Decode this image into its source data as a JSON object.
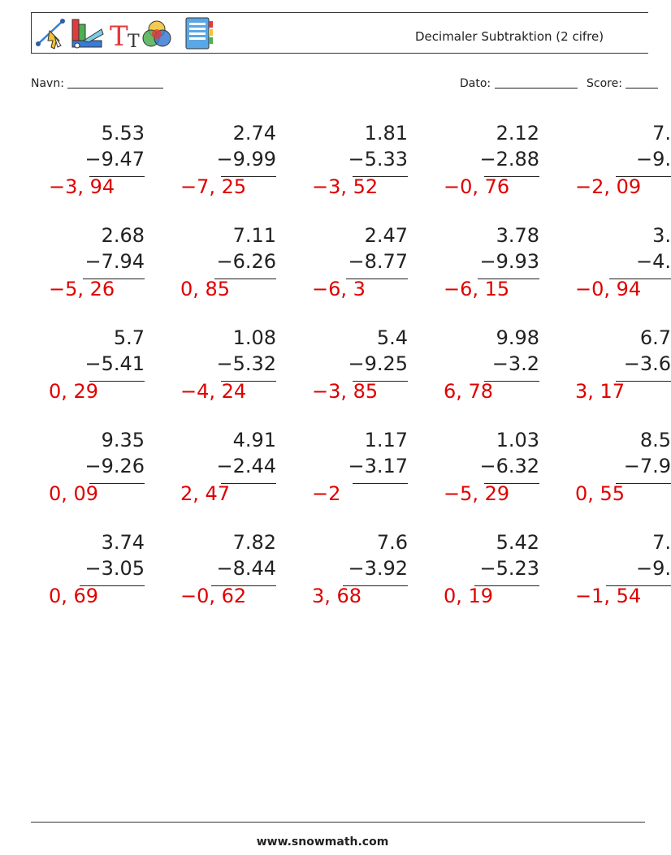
{
  "header": {
    "title": "Decimaler Subtraktion (2 cifre)",
    "logo_icons": [
      "drawing-tools-icon",
      "ruler-color-swatch-icon",
      "text-type-icon",
      "color-wheel-icon",
      "notebook-icon"
    ]
  },
  "meta": {
    "name_label": "Navn:",
    "date_label": "Dato:",
    "score_label": "Score:"
  },
  "problems": [
    [
      {
        "a": "5.53",
        "b": "−9.47",
        "ans": "−3, 94"
      },
      {
        "a": "2.74",
        "b": "−9.99",
        "ans": "−7, 25"
      },
      {
        "a": "1.81",
        "b": "−5.33",
        "ans": "−3, 52"
      },
      {
        "a": "2.12",
        "b": "−2.88",
        "ans": "−0, 76"
      },
      {
        "a": "7.",
        "b": "−9.",
        "ans": "−2, 09"
      }
    ],
    [
      {
        "a": "2.68",
        "b": "−7.94",
        "ans": "−5, 26"
      },
      {
        "a": "7.11",
        "b": "−6.26",
        "ans": "0, 85"
      },
      {
        "a": "2.47",
        "b": "−8.77",
        "ans": "−6, 3"
      },
      {
        "a": "3.78",
        "b": "−9.93",
        "ans": "−6, 15"
      },
      {
        "a": "3.",
        "b": "−4.",
        "ans": "−0, 94"
      }
    ],
    [
      {
        "a": "5.7",
        "b": "−5.41",
        "ans": "0, 29"
      },
      {
        "a": "1.08",
        "b": "−5.32",
        "ans": "−4, 24"
      },
      {
        "a": "5.4",
        "b": "−9.25",
        "ans": "−3, 85"
      },
      {
        "a": "9.98",
        "b": "−3.2",
        "ans": "6, 78"
      },
      {
        "a": "6.7",
        "b": "−3.6",
        "ans": "3, 17"
      }
    ],
    [
      {
        "a": "9.35",
        "b": "−9.26",
        "ans": "0, 09"
      },
      {
        "a": "4.91",
        "b": "−2.44",
        "ans": "2, 47"
      },
      {
        "a": "1.17",
        "b": "−3.17",
        "ans": "−2"
      },
      {
        "a": "1.03",
        "b": "−6.32",
        "ans": "−5, 29"
      },
      {
        "a": "8.5",
        "b": "−7.9",
        "ans": "0, 55"
      }
    ],
    [
      {
        "a": "3.74",
        "b": "−3.05",
        "ans": "0, 69"
      },
      {
        "a": "7.82",
        "b": "−8.44",
        "ans": "−0, 62"
      },
      {
        "a": "7.6",
        "b": "−3.92",
        "ans": "3, 68"
      },
      {
        "a": "5.42",
        "b": "−5.23",
        "ans": "0, 19"
      },
      {
        "a": "7.",
        "b": "−9.",
        "ans": "−1, 54"
      }
    ]
  ],
  "footer": {
    "site": "www.snowmath.com"
  }
}
